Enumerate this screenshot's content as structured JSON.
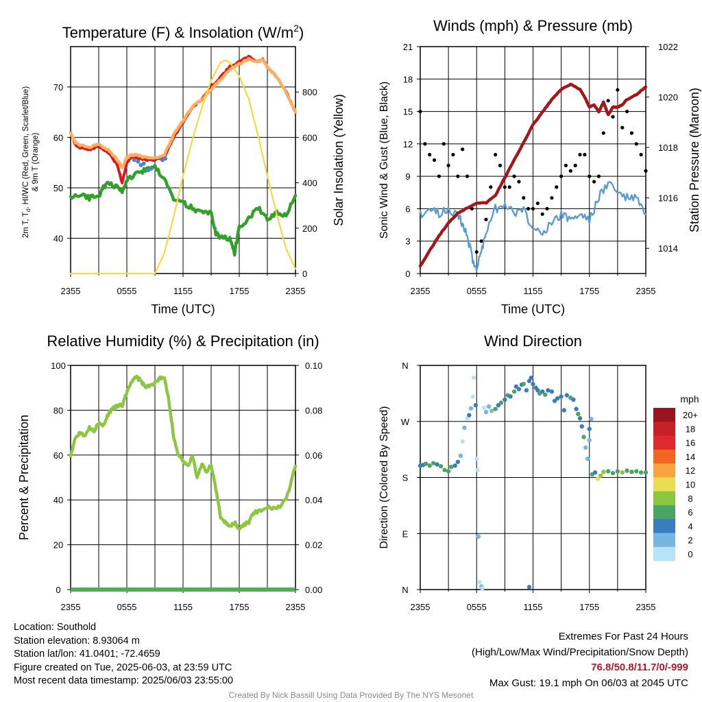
{
  "chart_data": [
    {
      "type": "line",
      "title": "Temperature (F) & Insolation (W/m2)",
      "title_main": "Temperature (F) & Insolation (W/m",
      "title_sup": "2",
      "title_end": ")",
      "xlabel": "Time (UTC)",
      "ylabel_left": [
        "2m T, T",
        "d",
        ", HI/WC (Red, Green, Scarlet/Blue)",
        "& 9m T (Orange)"
      ],
      "ylabel_right": "Solar Insolation (Yellow)",
      "x_ticks": [
        "2355",
        "0555",
        "1155",
        "1755",
        "2355"
      ],
      "x_unit": "hours since 2355 UTC",
      "ylim": [
        33,
        78
      ],
      "y_ticks": [
        40,
        50,
        60,
        70
      ],
      "y2lim": [
        0,
        1000
      ],
      "y2_ticks": [
        0,
        200,
        400,
        600,
        800
      ],
      "series": [
        {
          "name": "2m T",
          "color": "#d7191c",
          "x": [
            0,
            0.5,
            1,
            2,
            3,
            4,
            5,
            5.5,
            6,
            6.5,
            7,
            8,
            9,
            10,
            11,
            12,
            13,
            14,
            15,
            16,
            17,
            18,
            19,
            20,
            20.5,
            21,
            22,
            23,
            24
          ],
          "y": [
            61,
            58.5,
            58,
            57.5,
            58.2,
            57,
            54.5,
            51,
            55,
            56,
            56,
            55.5,
            55.5,
            56,
            60,
            63,
            66,
            67.5,
            70,
            72,
            74,
            75,
            76,
            75,
            75.5,
            74,
            72,
            69,
            65
          ]
        },
        {
          "name": "9m T",
          "color": "#fdae61",
          "x": [
            0,
            0.5,
            1,
            2,
            3,
            4,
            5,
            5.5,
            6,
            6.5,
            7,
            8,
            9,
            10,
            11,
            12,
            13,
            14,
            15,
            16,
            17,
            18,
            19,
            20,
            20.5,
            21,
            22,
            23,
            24
          ],
          "y": [
            61,
            59,
            58.5,
            58,
            58.7,
            57.5,
            55.5,
            54,
            56,
            56.5,
            56.5,
            56,
            56,
            56.5,
            60.5,
            63.3,
            66,
            67.5,
            69.5,
            71.5,
            73.5,
            74.5,
            75.5,
            75,
            75.5,
            74,
            72,
            69,
            65
          ]
        },
        {
          "name": "Td",
          "color": "#33a02c",
          "x": [
            0,
            1,
            2,
            3,
            3.5,
            4,
            5,
            5.5,
            6,
            7,
            8,
            9,
            10,
            11,
            12,
            13,
            14,
            15,
            15.5,
            16,
            17,
            17.5,
            18,
            19,
            20,
            21,
            22,
            23,
            24
          ],
          "y": [
            48,
            48.5,
            48,
            48.5,
            50,
            51,
            50,
            49,
            51.5,
            53,
            53.5,
            54,
            52,
            48,
            47,
            46,
            45,
            45,
            41,
            40,
            40,
            37,
            42,
            44,
            46,
            44,
            45,
            44.5,
            48.5
          ]
        },
        {
          "name": "HI/WC",
          "color": "#4a86c5",
          "x": [
            6.8,
            7.2,
            7.5,
            7.8,
            8.3,
            8.6,
            9.8,
            10.1
          ],
          "y": [
            55.5,
            55.2,
            54.5,
            54.8,
            53.5,
            53.8,
            55.5,
            55.8
          ]
        },
        {
          "name": "Solar Insolation",
          "color": "#f5d93e",
          "axis": "right",
          "x": [
            0,
            9,
            10,
            11,
            12,
            13,
            14,
            15,
            16,
            16.5,
            17,
            18,
            19,
            20,
            21,
            22,
            23,
            24
          ],
          "y": [
            0,
            0,
            90,
            250,
            430,
            590,
            730,
            850,
            930,
            940,
            930,
            870,
            770,
            610,
            430,
            260,
            110,
            20
          ]
        }
      ]
    },
    {
      "type": "line",
      "title": "Winds (mph) & Pressure (mb)",
      "xlabel": "Time (UTC)",
      "ylabel_left": "Sonic Wind & Gust (Blue, Black)",
      "ylabel_right": "Station Pressure (Maroon)",
      "x_ticks": [
        "2355",
        "0555",
        "1155",
        "1755",
        "2355"
      ],
      "x_unit": "hours since 2355 UTC",
      "ylim": [
        0,
        21
      ],
      "y_ticks": [
        0,
        3,
        6,
        9,
        12,
        15,
        18,
        21
      ],
      "y2lim": [
        1013,
        1022
      ],
      "y2_ticks": [
        1014,
        1016,
        1018,
        1020,
        1022
      ],
      "series": [
        {
          "name": "Sonic Wind",
          "color": "#5b9bd5",
          "x": [
            0,
            1,
            2,
            3,
            4,
            4.5,
            5,
            5.5,
            6,
            6.5,
            7,
            8,
            9,
            10,
            11,
            12,
            13,
            14,
            15,
            16,
            17,
            18,
            19,
            20,
            21,
            22,
            23,
            24
          ],
          "y": [
            5.5,
            6,
            5.5,
            6,
            5.5,
            4.5,
            3.5,
            1.5,
            0.5,
            2,
            4,
            6,
            6.5,
            5.5,
            6,
            4,
            4,
            4.5,
            5.5,
            5,
            5.5,
            5,
            7,
            8.5,
            7.5,
            7,
            7,
            5.5
          ]
        },
        {
          "name": "Gust",
          "color": "#000000",
          "x": [
            0,
            0.5,
            1,
            1.5,
            2,
            2.5,
            3,
            3.5,
            4,
            4.5,
            5,
            5.5,
            6,
            6.5,
            7,
            7.5,
            8,
            8.5,
            9,
            9.5,
            10,
            10.5,
            11,
            11.5,
            12,
            12.5,
            13,
            13.5,
            14,
            14.5,
            15,
            15.5,
            16,
            16.5,
            17,
            17.5,
            18,
            18.5,
            19,
            19.5,
            20,
            20.5,
            21,
            21.5,
            22,
            22.5,
            23,
            23.5,
            24
          ],
          "y": [
            15,
            12,
            11,
            10.5,
            9,
            12,
            10,
            11,
            9,
            11.5,
            9,
            6,
            2,
            3,
            5,
            8,
            11,
            10,
            8,
            8,
            9,
            8.5,
            7,
            6,
            6,
            6.5,
            5.5,
            6,
            7,
            8,
            9,
            10,
            9.5,
            10,
            11,
            11,
            9,
            8.5,
            9,
            13,
            16,
            14.5,
            17,
            13.5,
            15,
            13,
            12,
            11,
            9.5
          ]
        },
        {
          "name": "Station Pressure",
          "color": "#a4161a",
          "axis": "right",
          "x": [
            0,
            1,
            2,
            3,
            4,
            5,
            6,
            7,
            8,
            9,
            10,
            11,
            12,
            13,
            14,
            15,
            16,
            17,
            17.5,
            18,
            18.5,
            19,
            19.5,
            20,
            20.5,
            21,
            21.5,
            22,
            23,
            24
          ],
          "y": [
            1013.3,
            1013.9,
            1014.5,
            1015,
            1015.4,
            1015.6,
            1015.8,
            1015.8,
            1016.1,
            1016.8,
            1017.5,
            1018.2,
            1018.9,
            1019.4,
            1019.9,
            1020.3,
            1020.5,
            1020.3,
            1020,
            1019.6,
            1019.7,
            1019.4,
            1019.8,
            1019.3,
            1019.6,
            1019.6,
            1019.7,
            1019.9,
            1020.1,
            1020.4
          ]
        }
      ]
    },
    {
      "type": "line",
      "title": "Relative Humidity (%) & Precipitation (in)",
      "xlabel": "",
      "ylabel_left": "Percent & Precipitation",
      "ylabel_right": "",
      "x_ticks": [
        "2355",
        "0555",
        "1155",
        "1755",
        "2355"
      ],
      "x_unit": "hours since 2355 UTC",
      "ylim": [
        0,
        100
      ],
      "y_ticks": [
        0,
        20,
        40,
        60,
        80,
        100
      ],
      "y2lim": [
        0,
        0.1
      ],
      "y2_ticks": [
        "0.00",
        "0.02",
        "0.04",
        "0.06",
        "0.08",
        "0.10"
      ],
      "series": [
        {
          "name": "Relative Humidity",
          "color": "#8dc63f",
          "x": [
            0,
            0.5,
            1,
            1.5,
            2,
            2.5,
            3,
            3.5,
            4,
            4.5,
            5,
            5.5,
            6,
            6.5,
            7,
            7.5,
            8,
            8.5,
            9,
            9.5,
            10,
            10.5,
            11,
            11.5,
            12,
            12.5,
            13,
            13.5,
            14,
            14.5,
            15,
            15.5,
            16,
            16.5,
            17,
            17.5,
            18,
            18.5,
            19,
            19.5,
            20,
            21,
            22,
            23,
            24
          ],
          "y": [
            60,
            68,
            70,
            69,
            72,
            71,
            74,
            73,
            78,
            81,
            82,
            82,
            88,
            93,
            95,
            93,
            90,
            91,
            92,
            94,
            95,
            84,
            68,
            60,
            57,
            55,
            60,
            50,
            56,
            52,
            56,
            45,
            32,
            30,
            28,
            30,
            27,
            29,
            30,
            34,
            35,
            37,
            36,
            40,
            55
          ]
        },
        {
          "name": "Precipitation",
          "color": "#4caf50",
          "axis": "right",
          "x": [
            0,
            24
          ],
          "y": [
            0,
            0
          ]
        }
      ]
    },
    {
      "type": "scatter",
      "title": "Wind Direction",
      "xlabel": "",
      "ylabel_left": "Direction (Colored By Speed)",
      "x_ticks": [
        "2355",
        "0555",
        "1155",
        "1755",
        "2355"
      ],
      "x_unit": "hours since 2355 UTC",
      "y_unit": "degrees",
      "ylim": [
        0,
        360
      ],
      "y_ticks": [
        "N",
        "E",
        "S",
        "W",
        "N"
      ],
      "colorbar": {
        "title": "mph",
        "labels": [
          "20+",
          "18",
          "16",
          "14",
          "12",
          "10",
          "8",
          "6",
          "4",
          "2",
          "0"
        ],
        "colors": [
          "#99151d",
          "#c62127",
          "#e0282f",
          "#f26522",
          "#f9a341",
          "#e8de4f",
          "#8dc63f",
          "#4aa564",
          "#3a7dbf",
          "#77b5e3",
          "#b8e2f5"
        ]
      },
      "points": [
        [
          0,
          199,
          4
        ],
        [
          0.3,
          200,
          4
        ],
        [
          0.6,
          202,
          6
        ],
        [
          1,
          199,
          6
        ],
        [
          1.4,
          203,
          6
        ],
        [
          1.8,
          201,
          4
        ],
        [
          2.2,
          198,
          6
        ],
        [
          2.6,
          192,
          6
        ],
        [
          3,
          190,
          6
        ],
        [
          3.3,
          197,
          6
        ],
        [
          3.7,
          199,
          4
        ],
        [
          4,
          205,
          4
        ],
        [
          4.3,
          215,
          2
        ],
        [
          4.5,
          238,
          0
        ],
        [
          4.7,
          260,
          2
        ],
        [
          5,
          275,
          0
        ],
        [
          5.2,
          280,
          4
        ],
        [
          5.4,
          291,
          2
        ],
        [
          5.6,
          310,
          0
        ],
        [
          5.7,
          340,
          0
        ],
        [
          5.9,
          296,
          4
        ],
        [
          6,
          210,
          0
        ],
        [
          6.1,
          192,
          0
        ],
        [
          6.2,
          85,
          2
        ],
        [
          6.3,
          12,
          0
        ],
        [
          6.5,
          5,
          2
        ],
        [
          6.6,
          2,
          0
        ],
        [
          6.8,
          292,
          0
        ],
        [
          7,
          285,
          2
        ],
        [
          7.3,
          294,
          2
        ],
        [
          7.6,
          287,
          2
        ],
        [
          8,
          290,
          6
        ],
        [
          8.3,
          296,
          4
        ],
        [
          8.6,
          300,
          6
        ],
        [
          9,
          305,
          4
        ],
        [
          9.3,
          312,
          6
        ],
        [
          9.6,
          310,
          4
        ],
        [
          10,
          318,
          6
        ],
        [
          10.2,
          326,
          4
        ],
        [
          10.5,
          322,
          4
        ],
        [
          10.8,
          329,
          4
        ],
        [
          11,
          330,
          6
        ],
        [
          11.3,
          320,
          4
        ],
        [
          11.6,
          335,
          4
        ],
        [
          11.8,
          340,
          4
        ],
        [
          12,
          330,
          4
        ],
        [
          12.3,
          324,
          4
        ],
        [
          12.5,
          320,
          4
        ],
        [
          12.7,
          315,
          6
        ],
        [
          13,
          318,
          4
        ],
        [
          13.3,
          313,
          6
        ],
        [
          13.6,
          320,
          4
        ],
        [
          14,
          318,
          4
        ],
        [
          14.3,
          303,
          4
        ],
        [
          14.6,
          307,
          4
        ],
        [
          15,
          310,
          4
        ],
        [
          15.3,
          288,
          4
        ],
        [
          15.6,
          312,
          4
        ],
        [
          16,
          308,
          6
        ],
        [
          16.3,
          305,
          4
        ],
        [
          16.6,
          290,
          4
        ],
        [
          16.8,
          282,
          6
        ],
        [
          17,
          275,
          4
        ],
        [
          17.2,
          262,
          4
        ],
        [
          17.4,
          245,
          6
        ],
        [
          17.6,
          228,
          2
        ],
        [
          17.8,
          210,
          2
        ],
        [
          18,
          258,
          4
        ],
        [
          18,
          240,
          2
        ],
        [
          18.2,
          274,
          2
        ],
        [
          11.6,
          4,
          4
        ],
        [
          18.3,
          185,
          6
        ],
        [
          18.6,
          188,
          4
        ],
        [
          18.9,
          178,
          10
        ],
        [
          19.2,
          183,
          8
        ],
        [
          19.5,
          189,
          8
        ],
        [
          20,
          190,
          6
        ],
        [
          20.5,
          187,
          6
        ],
        [
          21,
          190,
          6
        ],
        [
          21.5,
          188,
          8
        ],
        [
          22,
          191,
          6
        ],
        [
          22.5,
          189,
          6
        ],
        [
          23,
          190,
          6
        ],
        [
          23.5,
          188,
          6
        ],
        [
          24,
          188,
          6
        ]
      ]
    }
  ],
  "footer": {
    "location": "Location: Southold",
    "elevation": "Station elevation: 8.93064 m",
    "latlon": "Station lat/lon: 41.0401; -72.4659",
    "created": "Figure created on Tue, 2025-06-03, at 23:59 UTC",
    "recent": "Most recent data timestamp: 2025/06/03 23:55:00",
    "extremes_title": "Extremes For Past 24 Hours",
    "extremes_sub": "(High/Low/Max Wind/Precipitation/Snow Depth)",
    "extremes_values": "76.8/50.8/11.7/0/-999",
    "max_gust": "Max Gust: 19.1 mph On 06/03 at 2045 UTC",
    "credit": "Created By Nick Bassill Using Data Provided By The NYS Mesonet"
  }
}
